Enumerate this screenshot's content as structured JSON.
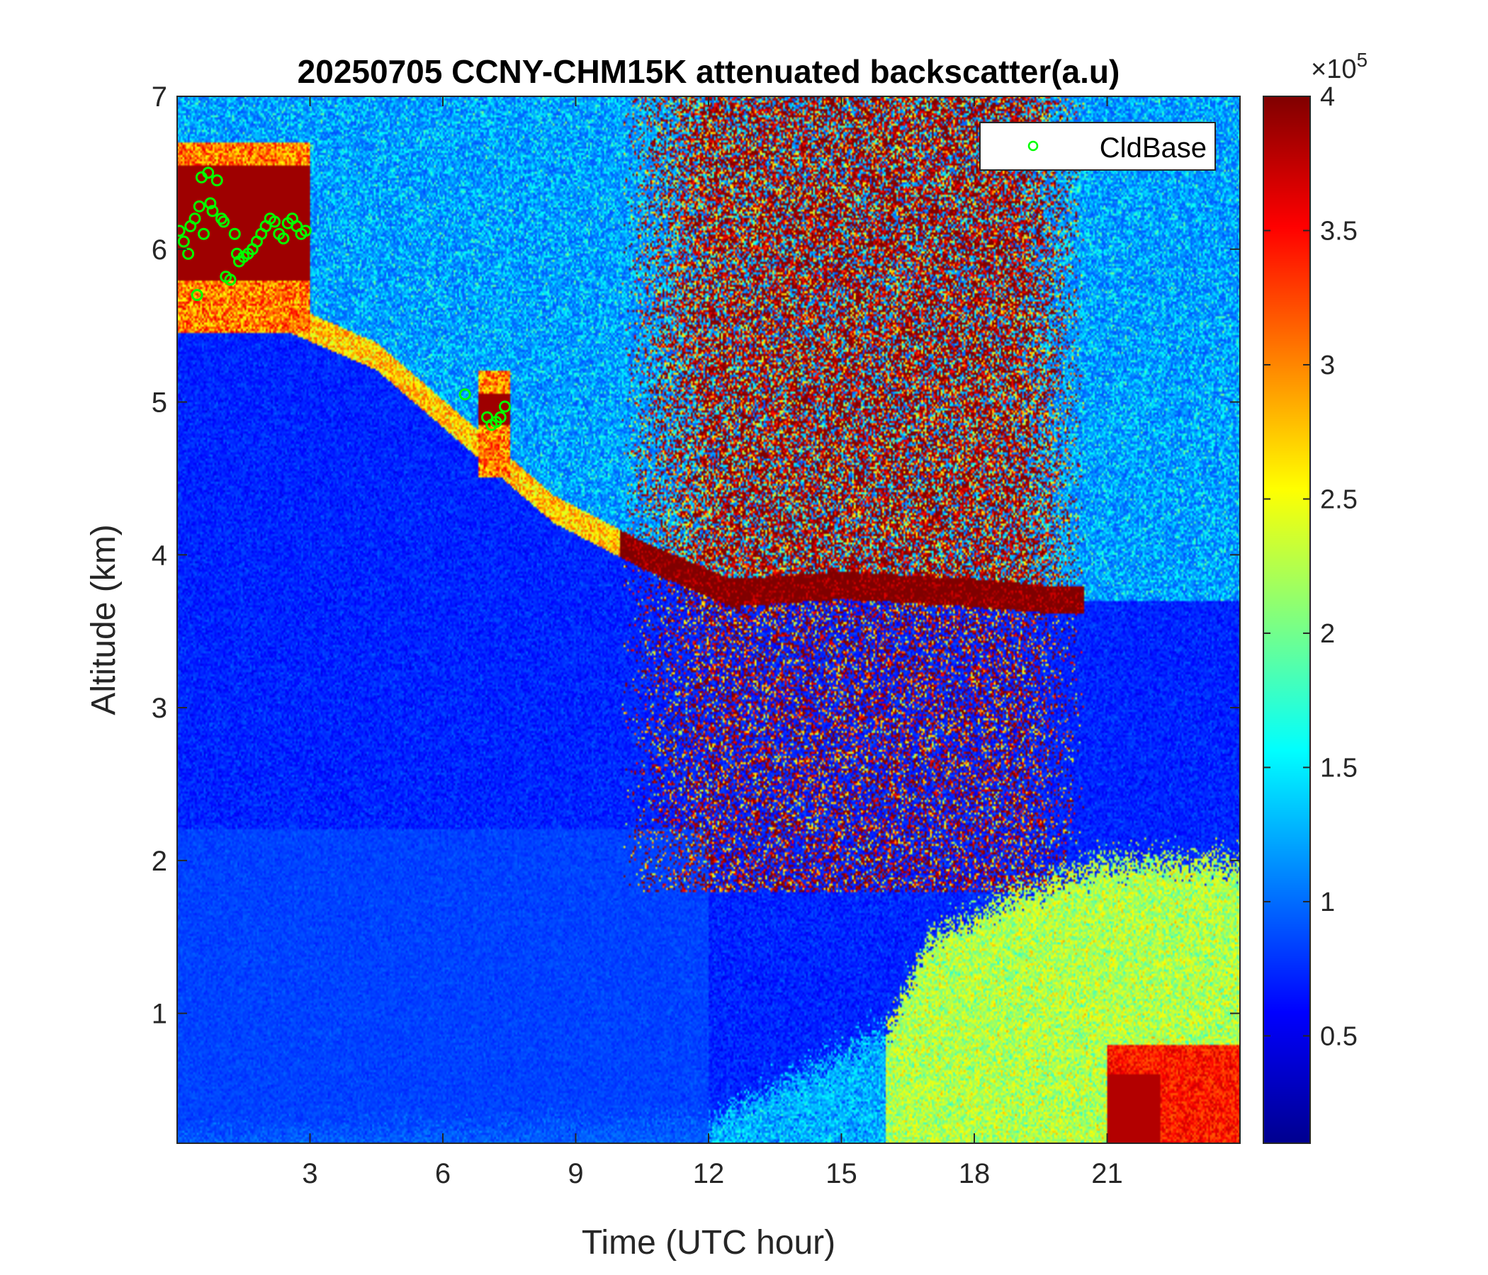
{
  "chart_data": {
    "type": "heatmap",
    "title": "20250705 CCNY-CHM15K attenuated backscatter(a.u)",
    "xlabel": "Time (UTC hour)",
    "ylabel": "Altitude (km)",
    "xlim": [
      0,
      24
    ],
    "ylim": [
      0.15,
      7
    ],
    "xticks": [
      3,
      6,
      9,
      12,
      15,
      18,
      21
    ],
    "yticks": [
      1,
      2,
      3,
      4,
      5,
      6,
      7
    ],
    "colormap": "jet",
    "colorbar": {
      "clim": [
        0.1,
        4
      ],
      "ticks": [
        0.5,
        1,
        1.5,
        2,
        2.5,
        3,
        3.5,
        4
      ],
      "tick_labels": [
        "0.5",
        "1",
        "1.5",
        "2",
        "2.5",
        "3",
        "3.5",
        "4"
      ],
      "exponent_label": "×10",
      "exponent_power": "5"
    },
    "features": {
      "aerosol_layer_top_km": [
        [
          0.5,
          5.6
        ],
        [
          2.5,
          5.55
        ],
        [
          4.5,
          5.3
        ],
        [
          6.5,
          4.8
        ],
        [
          8.5,
          4.3
        ],
        [
          10.5,
          4.0
        ],
        [
          12.5,
          3.75
        ],
        [
          15,
          3.8
        ],
        [
          18,
          3.75
        ],
        [
          20,
          3.7
        ]
      ],
      "upper_noise_band_hours": [
        10,
        20.5
      ],
      "boundary_layer_height_km": [
        [
          0,
          0.2
        ],
        [
          12,
          0.3
        ],
        [
          16,
          0.9
        ],
        [
          17,
          1.5
        ],
        [
          19,
          1.8
        ],
        [
          21,
          2.0
        ],
        [
          24,
          2.0
        ]
      ],
      "strong_near_surface_hours": [
        21,
        24
      ],
      "clouds": [
        {
          "t0": 0,
          "t1": 3,
          "base_km": 5.8,
          "top_km": 6.7
        },
        {
          "t0": 6.8,
          "t1": 7.5,
          "base_km": 4.85,
          "top_km": 5.2
        }
      ]
    },
    "series": [
      {
        "name": "CldBase",
        "marker": "circle",
        "color": "#00ff00",
        "x": [
          0.05,
          0.15,
          0.25,
          0.3,
          0.4,
          0.45,
          0.5,
          0.55,
          0.6,
          0.7,
          0.75,
          0.8,
          0.9,
          1.0,
          1.05,
          1.1,
          1.2,
          1.3,
          1.35,
          1.4,
          1.5,
          1.6,
          1.7,
          1.8,
          1.9,
          2.0,
          2.1,
          2.2,
          2.3,
          2.4,
          2.5,
          2.6,
          2.7,
          2.8,
          2.9,
          6.5,
          7.0,
          7.1,
          7.2,
          7.3,
          7.4
        ],
        "y": [
          6.12,
          6.05,
          5.97,
          6.15,
          6.2,
          5.7,
          6.28,
          6.47,
          6.1,
          6.5,
          6.3,
          6.25,
          6.45,
          6.2,
          6.18,
          5.82,
          5.8,
          6.1,
          5.97,
          5.92,
          5.95,
          5.97,
          6.0,
          6.05,
          6.1,
          6.15,
          6.2,
          6.18,
          6.1,
          6.07,
          6.17,
          6.2,
          6.15,
          6.1,
          6.12,
          5.05,
          4.9,
          4.85,
          4.87,
          4.9,
          4.97
        ]
      }
    ],
    "legend": {
      "position": "top-right",
      "entries": [
        "CldBase"
      ]
    }
  }
}
